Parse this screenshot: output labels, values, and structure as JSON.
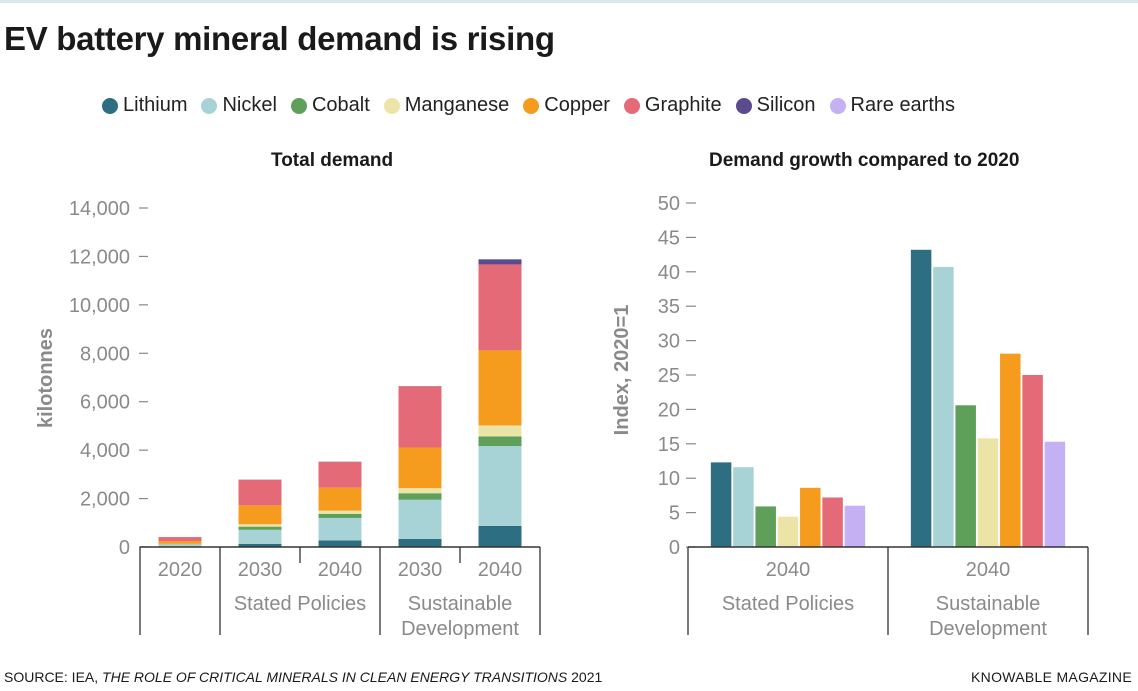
{
  "title": "EV battery mineral demand is rising",
  "legend": [
    {
      "name": "Lithium",
      "color": "#2e6e82"
    },
    {
      "name": "Nickel",
      "color": "#a8d3d6"
    },
    {
      "name": "Cobalt",
      "color": "#5ea05a"
    },
    {
      "name": "Manganese",
      "color": "#ece3a6"
    },
    {
      "name": "Copper",
      "color": "#f59c1f"
    },
    {
      "name": "Graphite",
      "color": "#e56a78"
    },
    {
      "name": "Silicon",
      "color": "#5b4a8c"
    },
    {
      "name": "Rare earths",
      "color": "#c3b1f4"
    }
  ],
  "source": {
    "prefix": "SOURCE: IEA, ",
    "italic": "THE ROLE OF CRITICAL MINERALS IN CLEAN ENERGY TRANSITIONS",
    "suffix": " 2021"
  },
  "brand": "KNOWABLE MAGAZINE",
  "chart_data": [
    {
      "type": "bar",
      "stacked": true,
      "title": "Total demand",
      "ylabel": "kilotonnes",
      "ylim": [
        0,
        14000
      ],
      "yticks": [
        0,
        2000,
        4000,
        6000,
        8000,
        10000,
        12000,
        14000
      ],
      "ytick_labels": [
        "0",
        "2,000",
        "4,000",
        "6,000",
        "8,000",
        "10,000",
        "12,000",
        "14,000"
      ],
      "categories": [
        "2020",
        "2030",
        "2040",
        "2030",
        "2040"
      ],
      "groups": [
        {
          "label": "",
          "count": 1
        },
        {
          "label": "Stated Policies",
          "count": 2
        },
        {
          "label": "Sustainable\nDevelopment",
          "count": 2
        }
      ],
      "series": [
        {
          "name": "Lithium",
          "values": [
            20,
            130,
            270,
            330,
            870
          ]
        },
        {
          "name": "Nickel",
          "values": [
            70,
            580,
            930,
            1620,
            3300
          ]
        },
        {
          "name": "Cobalt",
          "values": [
            20,
            130,
            170,
            270,
            400
          ]
        },
        {
          "name": "Manganese",
          "values": [
            20,
            100,
            130,
            210,
            450
          ]
        },
        {
          "name": "Copper",
          "values": [
            110,
            780,
            950,
            1680,
            3100
          ]
        },
        {
          "name": "Graphite",
          "values": [
            170,
            1050,
            1060,
            2520,
            3550
          ]
        },
        {
          "name": "Silicon",
          "values": [
            0,
            10,
            10,
            10,
            210
          ]
        },
        {
          "name": "Rare earths",
          "values": [
            0,
            0,
            0,
            0,
            0
          ]
        }
      ]
    },
    {
      "type": "bar",
      "title": "Demand growth compared to 2020",
      "ylabel": "Index, 2020=1",
      "ylim": [
        0,
        50
      ],
      "yticks": [
        0,
        5,
        10,
        15,
        20,
        25,
        30,
        35,
        40,
        45,
        50
      ],
      "categories": [
        "2040",
        "2040"
      ],
      "groups": [
        {
          "label": "Stated Policies",
          "count": 1
        },
        {
          "label": "Sustainable\nDevelopment",
          "count": 1
        }
      ],
      "series": [
        {
          "name": "Lithium",
          "values": [
            12.3,
            43.2
          ]
        },
        {
          "name": "Nickel",
          "values": [
            11.6,
            40.7
          ]
        },
        {
          "name": "Cobalt",
          "values": [
            5.9,
            20.6
          ]
        },
        {
          "name": "Manganese",
          "values": [
            4.4,
            15.8
          ]
        },
        {
          "name": "Copper",
          "values": [
            8.6,
            28.1
          ]
        },
        {
          "name": "Graphite",
          "values": [
            7.2,
            25.0
          ]
        },
        {
          "name": "Rare earths",
          "values": [
            6.0,
            15.3
          ]
        }
      ]
    }
  ]
}
